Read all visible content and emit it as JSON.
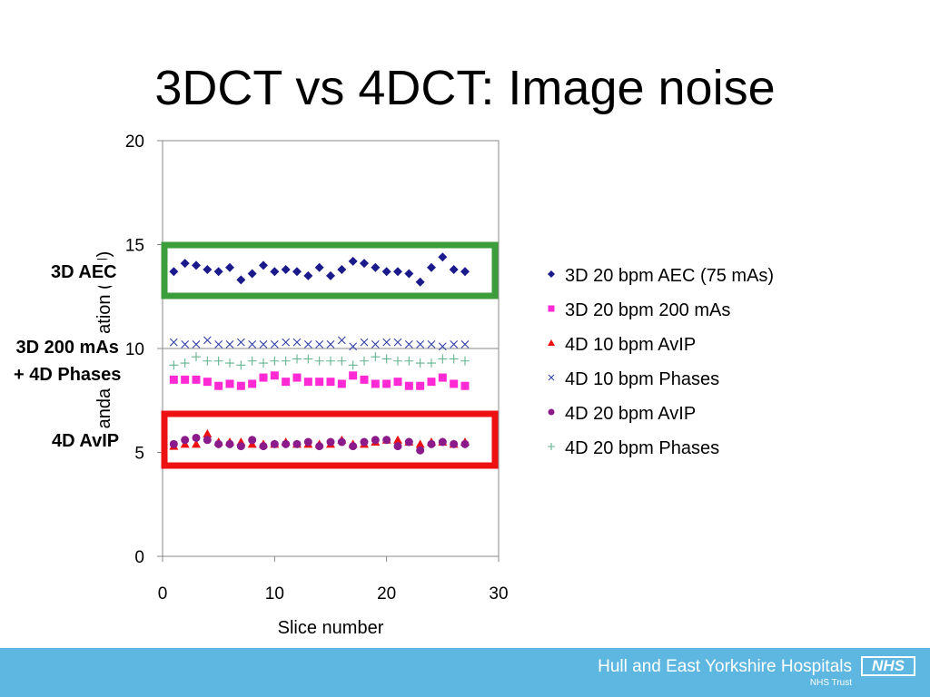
{
  "slide": {
    "title": "3DCT vs 4DCT: Image noise"
  },
  "annotations": [
    {
      "label": "3D AEC",
      "box_color": "#3c9e3a"
    },
    {
      "label": "3D 200 mAs\n+ 4D Phases"
    },
    {
      "label": "4D AvIP",
      "box_color": "#ee1111"
    }
  ],
  "footer": {
    "org_name": "Hull and East Yorkshire Hospitals",
    "org_sub": "NHS Trust",
    "logo_text": "NHS",
    "background": "#5eb7e0"
  },
  "chart_data": {
    "type": "scatter",
    "xlabel": "Slice number",
    "ylabel": "Standard deviation (HU)",
    "xlim": [
      0,
      30
    ],
    "ylim": [
      0,
      20
    ],
    "xticks": [
      0,
      10,
      20,
      30
    ],
    "yticks": [
      0,
      5,
      10,
      15,
      20
    ],
    "gridlines_y": [
      10,
      15
    ],
    "legend_position": "right",
    "series": [
      {
        "name": "3D 20 bpm AEC (75 mAs)",
        "marker": "diamond",
        "color": "#1a1a8c",
        "x": [
          1,
          2,
          3,
          4,
          5,
          6,
          7,
          8,
          9,
          10,
          11,
          12,
          13,
          14,
          15,
          16,
          17,
          18,
          19,
          20,
          21,
          22,
          23,
          24,
          25,
          26,
          27
        ],
        "y": [
          13.7,
          14.1,
          14.0,
          13.8,
          13.7,
          13.9,
          13.3,
          13.6,
          14.0,
          13.7,
          13.8,
          13.7,
          13.5,
          13.9,
          13.5,
          13.8,
          14.2,
          14.1,
          13.9,
          13.7,
          13.7,
          13.6,
          13.2,
          13.9,
          14.4,
          13.8,
          13.7
        ]
      },
      {
        "name": "3D 20 bpm 200 mAs",
        "marker": "square",
        "color": "#ff2ad4",
        "x": [
          1,
          2,
          3,
          4,
          5,
          6,
          7,
          8,
          9,
          10,
          11,
          12,
          13,
          14,
          15,
          16,
          17,
          18,
          19,
          20,
          21,
          22,
          23,
          24,
          25,
          26,
          27
        ],
        "y": [
          8.5,
          8.5,
          8.5,
          8.4,
          8.2,
          8.3,
          8.2,
          8.3,
          8.6,
          8.7,
          8.4,
          8.6,
          8.4,
          8.4,
          8.4,
          8.3,
          8.7,
          8.5,
          8.3,
          8.3,
          8.4,
          8.2,
          8.2,
          8.4,
          8.6,
          8.3,
          8.2
        ]
      },
      {
        "name": "4D 10 bpm AvIP",
        "marker": "triangle",
        "color": "#ee1111",
        "x": [
          1,
          2,
          3,
          4,
          5,
          6,
          7,
          8,
          9,
          10,
          11,
          12,
          13,
          14,
          15,
          16,
          17,
          18,
          19,
          20,
          21,
          22,
          23,
          24,
          25,
          26,
          27
        ],
        "y": [
          5.3,
          5.4,
          5.4,
          5.9,
          5.5,
          5.5,
          5.5,
          5.4,
          5.4,
          5.4,
          5.5,
          5.4,
          5.4,
          5.4,
          5.4,
          5.6,
          5.4,
          5.4,
          5.5,
          5.6,
          5.6,
          5.5,
          5.4,
          5.5,
          5.5,
          5.4,
          5.5
        ]
      },
      {
        "name": "4D 10 bpm Phases",
        "marker": "x",
        "color": "#2f3fa8",
        "x": [
          1,
          2,
          3,
          4,
          5,
          6,
          7,
          8,
          9,
          10,
          11,
          12,
          13,
          14,
          15,
          16,
          17,
          18,
          19,
          20,
          21,
          22,
          23,
          24,
          25,
          26,
          27
        ],
        "y": [
          10.3,
          10.2,
          10.2,
          10.4,
          10.2,
          10.2,
          10.3,
          10.2,
          10.2,
          10.2,
          10.3,
          10.3,
          10.2,
          10.2,
          10.2,
          10.4,
          10.1,
          10.3,
          10.2,
          10.3,
          10.3,
          10.2,
          10.2,
          10.2,
          10.1,
          10.2,
          10.2
        ]
      },
      {
        "name": "4D 20 bpm AvIP",
        "marker": "circle",
        "color": "#8b1a8b",
        "x": [
          1,
          2,
          3,
          4,
          5,
          6,
          7,
          8,
          9,
          10,
          11,
          12,
          13,
          14,
          15,
          16,
          17,
          18,
          19,
          20,
          21,
          22,
          23,
          24,
          25,
          26,
          27
        ],
        "y": [
          5.4,
          5.6,
          5.7,
          5.6,
          5.4,
          5.4,
          5.3,
          5.6,
          5.3,
          5.4,
          5.4,
          5.4,
          5.5,
          5.3,
          5.5,
          5.5,
          5.3,
          5.5,
          5.6,
          5.6,
          5.3,
          5.5,
          5.1,
          5.4,
          5.5,
          5.4,
          5.4
        ]
      },
      {
        "name": "4D 20 bpm Phases",
        "marker": "plus",
        "color": "#66b38f",
        "x": [
          1,
          2,
          3,
          4,
          5,
          6,
          7,
          8,
          9,
          10,
          11,
          12,
          13,
          14,
          15,
          16,
          17,
          18,
          19,
          20,
          21,
          22,
          23,
          24,
          25,
          26,
          27
        ],
        "y": [
          9.2,
          9.3,
          9.6,
          9.4,
          9.4,
          9.3,
          9.2,
          9.4,
          9.3,
          9.4,
          9.4,
          9.5,
          9.5,
          9.4,
          9.4,
          9.4,
          9.2,
          9.4,
          9.6,
          9.5,
          9.4,
          9.4,
          9.3,
          9.3,
          9.5,
          9.5,
          9.4
        ]
      }
    ]
  }
}
